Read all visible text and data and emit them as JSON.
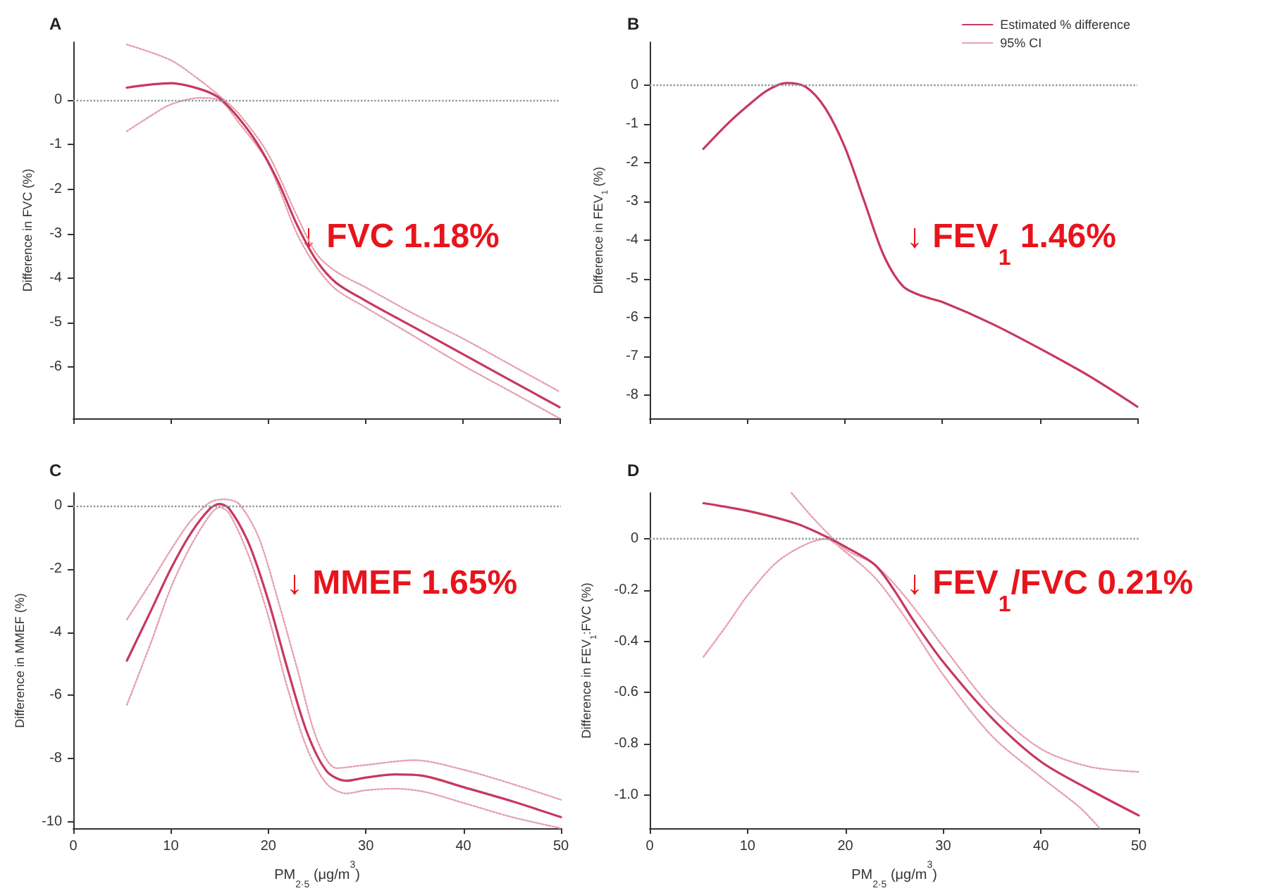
{
  "chart_data": [
    {
      "type": "line",
      "title": "A",
      "ylabel": "Difference in FVC (%)",
      "xlim": [
        0,
        50
      ],
      "xticks": [
        0,
        10,
        20,
        30,
        40,
        50
      ],
      "ylim": [
        -7.15,
        1.3
      ],
      "yticks": [
        -6,
        -5,
        -4,
        -3,
        -2,
        -1,
        0
      ],
      "tick_labels": "y",
      "grid": false,
      "legend": false,
      "marker": "none",
      "series": [
        {
          "color": "#c8385e",
          "line_style": "solid",
          "x": [
            5.5,
            10,
            13,
            15,
            17,
            19,
            21,
            23,
            25,
            27,
            30,
            35,
            40,
            45,
            50
          ],
          "values": [
            0.28,
            0.38,
            0.25,
            0.05,
            -0.4,
            -1.0,
            -1.8,
            -2.8,
            -3.6,
            -4.1,
            -4.5,
            -5.1,
            -5.7,
            -6.3,
            -6.9
          ]
        },
        {
          "color": "#e6a0b0",
          "line_style": "dotted",
          "x": [
            5.5,
            10,
            13,
            15,
            17,
            20,
            23,
            25,
            27,
            30,
            35,
            40,
            45,
            50
          ],
          "values": [
            1.25,
            0.9,
            0.45,
            0.1,
            -0.3,
            -1.2,
            -2.6,
            -3.45,
            -3.85,
            -4.2,
            -4.8,
            -5.35,
            -5.95,
            -6.55
          ]
        },
        {
          "color": "#e6a0b0",
          "line_style": "dotted",
          "x": [
            5.5,
            8,
            10,
            13,
            15,
            17,
            20,
            23,
            25,
            27,
            30,
            35,
            40,
            45,
            50
          ],
          "values": [
            -0.7,
            -0.35,
            -0.1,
            0.05,
            0.0,
            -0.5,
            -1.4,
            -3.0,
            -3.75,
            -4.25,
            -4.65,
            -5.3,
            -5.95,
            -6.55,
            -7.15
          ]
        }
      ],
      "ref_lines": [
        {
          "axis": "y",
          "value": 0,
          "color": "#8a9aa0",
          "line_style": "dotted"
        }
      ],
      "annotations": [
        "↓ FVC 1.18%"
      ]
    },
    {
      "type": "line",
      "title": "B",
      "ylabel": "Difference in FEV$_{1}$ (%)",
      "xlim": [
        0,
        50
      ],
      "xticks": [
        0,
        10,
        20,
        30,
        40,
        50
      ],
      "ylim": [
        -8.6,
        1.1
      ],
      "yticks": [
        -8,
        -7,
        -6,
        -5,
        -4,
        -3,
        -2,
        -1,
        0
      ],
      "tick_labels": "y",
      "grid": false,
      "legend": "top right",
      "marker": "none",
      "series": [
        {
          "name": "Estimated % difference",
          "color": "#c8385e",
          "line_style": "solid",
          "x": [
            5.5,
            8,
            10,
            12,
            14,
            16,
            18,
            20,
            22,
            24,
            26,
            28,
            30,
            35,
            40,
            45,
            50
          ],
          "values": [
            -1.65,
            -1.0,
            -0.55,
            -0.15,
            0.05,
            -0.05,
            -0.6,
            -1.6,
            -3.0,
            -4.4,
            -5.2,
            -5.45,
            -5.6,
            -6.15,
            -6.8,
            -7.5,
            -8.3
          ]
        },
        {
          "name": "95% CI",
          "color": "#e6a0b0",
          "line_style": "dotted"
        }
      ],
      "ref_lines": [
        {
          "axis": "y",
          "value": 0,
          "color": "#8a9aa0",
          "line_style": "dotted"
        }
      ],
      "annotations": [
        "↓ FEV$_{1}$ 1.46%"
      ]
    },
    {
      "type": "line",
      "title": "C",
      "xlabel": "PM$_{2·5}$ (μg/m$^{3}$)",
      "ylabel": "Difference in MMEF (%)",
      "xlim": [
        0,
        50
      ],
      "xticks": [
        0,
        10,
        20,
        30,
        40,
        50
      ],
      "ylim": [
        -10.2,
        0.4
      ],
      "yticks": [
        -10,
        -8,
        -6,
        -4,
        -2,
        0
      ],
      "grid": false,
      "legend": false,
      "marker": "none",
      "series": [
        {
          "color": "#c8385e",
          "line_style": "solid",
          "x": [
            5.5,
            8,
            10,
            12,
            14,
            15,
            16,
            18,
            20,
            22,
            24,
            26,
            28,
            30,
            33,
            36,
            40,
            45,
            50
          ],
          "values": [
            -4.9,
            -3.3,
            -2.0,
            -0.9,
            -0.1,
            0.05,
            -0.1,
            -1.2,
            -3.0,
            -5.2,
            -7.2,
            -8.4,
            -8.7,
            -8.6,
            -8.5,
            -8.55,
            -8.9,
            -9.35,
            -9.85
          ]
        },
        {
          "color": "#e6a0b0",
          "line_style": "dotted",
          "x": [
            5.5,
            8,
            10,
            12,
            14,
            15.5,
            17,
            19,
            21,
            23,
            25,
            27,
            30,
            35,
            40,
            45,
            50
          ],
          "values": [
            -3.6,
            -2.4,
            -1.4,
            -0.5,
            0.1,
            0.2,
            0.05,
            -1.0,
            -3.0,
            -5.2,
            -7.4,
            -8.3,
            -8.2,
            -8.05,
            -8.35,
            -8.8,
            -9.3
          ]
        },
        {
          "color": "#e6a0b0",
          "line_style": "dotted",
          "x": [
            5.5,
            8,
            10,
            12,
            14,
            15,
            16,
            18,
            20,
            22,
            24,
            26,
            28,
            30,
            33,
            36,
            40,
            45,
            50
          ],
          "values": [
            -6.3,
            -4.3,
            -2.6,
            -1.3,
            -0.3,
            -0.05,
            -0.25,
            -1.6,
            -3.5,
            -5.8,
            -7.7,
            -8.8,
            -9.1,
            -9.0,
            -8.95,
            -9.05,
            -9.4,
            -9.85,
            -10.2
          ]
        }
      ],
      "ref_lines": [
        {
          "axis": "y",
          "value": 0,
          "color": "#8a9aa0",
          "line_style": "dotted"
        }
      ],
      "annotations": [
        "↓ MMEF 1.65%"
      ]
    },
    {
      "type": "line",
      "title": "D",
      "xlabel": "PM$_{2·5}$ (μg/m$^{3}$)",
      "ylabel": "Difference in FEV$_{1}$:FVC (%)",
      "xlim": [
        0,
        50
      ],
      "xticks": [
        0,
        10,
        20,
        30,
        40,
        50
      ],
      "ylim": [
        -1.13,
        0.18
      ],
      "yticks": [
        {
          "value": -1.0,
          "label": "-1.0"
        },
        -0.8,
        -0.6,
        -0.4,
        -0.2,
        0
      ],
      "grid": false,
      "legend": false,
      "marker": "none",
      "series": [
        {
          "color": "#c8385e",
          "line_style": "solid",
          "x": [
            5.5,
            10,
            15,
            18,
            20,
            23,
            25,
            27,
            30,
            35,
            40,
            45,
            50
          ],
          "values": [
            0.14,
            0.11,
            0.06,
            0.01,
            -0.03,
            -0.1,
            -0.2,
            -0.32,
            -0.48,
            -0.7,
            -0.87,
            -0.98,
            -1.08
          ]
        },
        {
          "color": "#e6a0b0",
          "line_style": "dotted",
          "x": [
            14.5,
            17,
            20,
            23,
            26,
            30,
            35,
            40,
            45,
            50
          ],
          "values": [
            0.18,
            0.07,
            -0.04,
            -0.1,
            -0.22,
            -0.42,
            -0.66,
            -0.82,
            -0.89,
            -0.91
          ]
        },
        {
          "color": "#e6a0b0",
          "line_style": "dotted",
          "x": [
            5.5,
            8,
            10,
            13,
            16,
            18,
            20,
            23,
            26,
            30,
            35,
            40,
            44,
            46
          ],
          "values": [
            -0.46,
            -0.33,
            -0.22,
            -0.09,
            -0.02,
            0.0,
            -0.05,
            -0.15,
            -0.3,
            -0.53,
            -0.77,
            -0.93,
            -1.05,
            -1.13
          ]
        }
      ],
      "ref_lines": [
        {
          "axis": "y",
          "value": 0,
          "color": "#8a9aa0",
          "line_style": "dotted"
        }
      ],
      "annotations": [
        "↓ FEV$_{1}$/FVC 0.21%"
      ]
    }
  ]
}
